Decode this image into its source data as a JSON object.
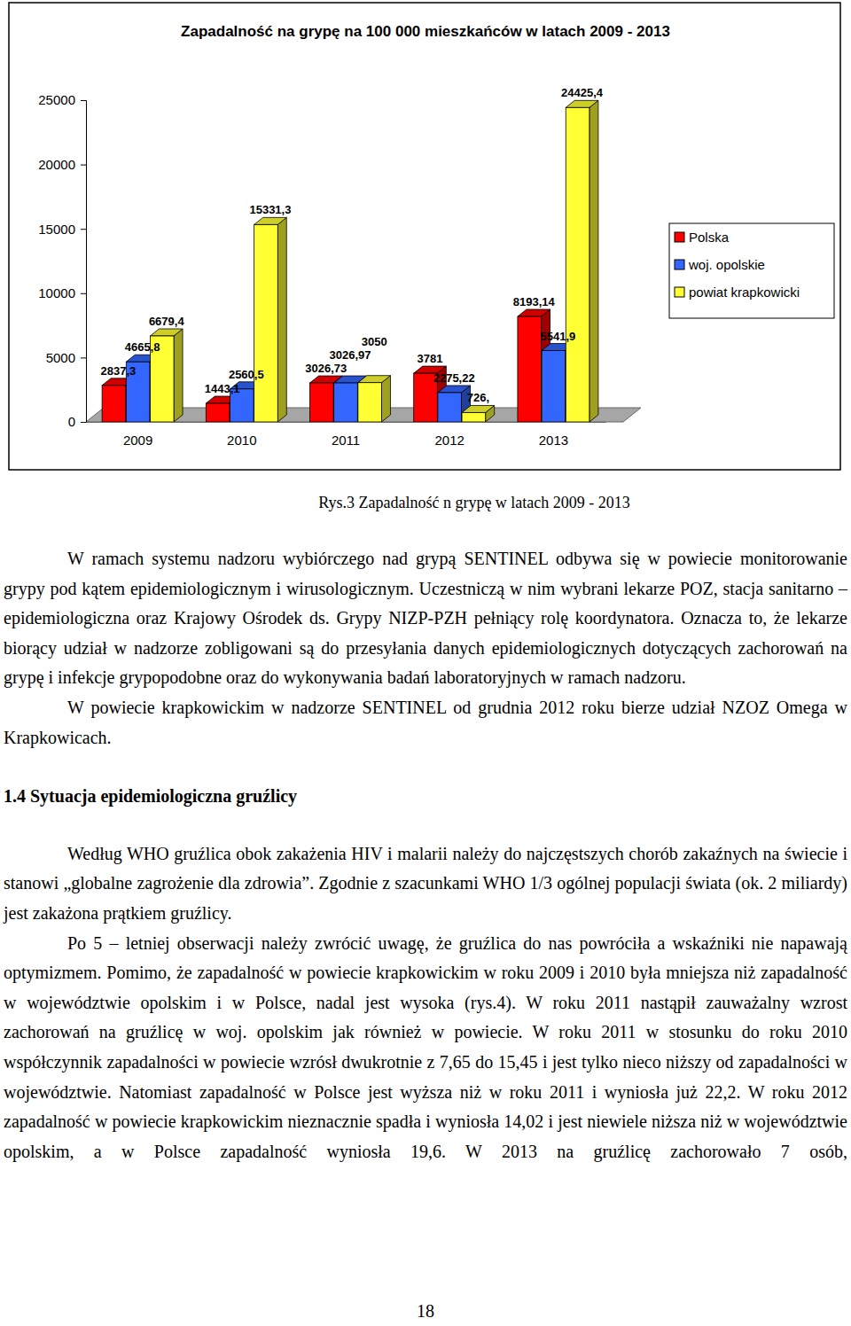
{
  "chart_data": {
    "type": "bar",
    "title": "Zapadalność na grypę na 100 000 mieszkańców w latach 2009 - 2013",
    "categories": [
      "2009",
      "2010",
      "2011",
      "2012",
      "2013"
    ],
    "series": [
      {
        "name": "Polska",
        "color": "#ff0000",
        "values": [
          2837.3,
          1443.1,
          3026.73,
          3781,
          8193.14
        ],
        "value_labels": [
          "2837,3",
          "1443,1",
          "3026,73",
          "3781",
          "8193,14"
        ]
      },
      {
        "name": "woj. opolskie",
        "color": "#3366ff",
        "values": [
          4665.8,
          2560.5,
          3026.97,
          2275.22,
          5541.9
        ],
        "value_labels": [
          "4665,8",
          "2560,5",
          "3026,97",
          "2275,22",
          "5541,9"
        ]
      },
      {
        "name": "powiat krapkowicki",
        "color": "#ffff33",
        "values": [
          6679.4,
          15331.3,
          3050,
          726,
          24425.4
        ],
        "value_labels": [
          "6679,4",
          "15331,3",
          "3050",
          "726,",
          "24425,4"
        ]
      }
    ],
    "ylim": [
      0,
      25000
    ],
    "yticks": [
      0,
      5000,
      10000,
      15000,
      20000,
      25000
    ],
    "grid": false,
    "legend": "right",
    "data_labels": true
  },
  "document": {
    "caption": "Rys.3 Zapadalność n grypę w latach 2009 - 2013",
    "blocks": [
      {
        "type": "paragraph",
        "text": "W ramach systemu nadzoru wybiórczego nad grypą SENTINEL odbywa się w powiecie monitorowanie grypy pod kątem epidemiologicznym i wirusologicznym. Uczestniczą w nim wybrani lekarze POZ, stacja sanitarno – epidemiologiczna oraz Krajowy Ośrodek ds. Grypy NIZP-PZH pełniący rolę koordynatora. Oznacza to, że lekarze biorący udział w nadzorze zobligowani są do przesyłania danych epidemiologicznych dotyczących zachorowań na grypę i infekcje grypopodobne oraz do wykonywania badań laboratoryjnych w ramach nadzoru."
      },
      {
        "type": "paragraph",
        "text": "W powiecie krapkowickim w nadzorze SENTINEL od grudnia 2012 roku bierze udział NZOZ Omega w Krapkowicach."
      },
      {
        "type": "heading",
        "text": "1.4 Sytuacja epidemiologiczna gruźlicy"
      },
      {
        "type": "paragraph",
        "text": "Według WHO gruźlica obok zakażenia HIV i malarii należy do najczęstszych chorób zakaźnych na świecie i stanowi „globalne zagrożenie dla zdrowia”. Zgodnie z szacunkami WHO 1/3 ogólnej populacji świata (ok. 2 miliardy) jest zakażona prątkiem gruźlicy."
      },
      {
        "type": "paragraph",
        "text": "Po 5 – letniej obserwacji należy zwrócić uwagę, że gruźlica do nas powróciła a wskaźniki nie napawają optymizmem. Pomimo, że zapadalność w powiecie krapkowickim w roku 2009 i 2010 była mniejsza niż zapadalność w województwie opolskim i w Polsce, nadal jest wysoka (rys.4). W roku 2011 nastąpił zauważalny wzrost zachorowań na gruźlicę w woj. opolskim jak również w powiecie. W roku 2011 w stosunku do roku 2010 współczynnik zapadalności w powiecie wzrósł dwukrotnie z 7,65 do 15,45 i jest tylko nieco niższy od zapadalności w województwie. Natomiast zapadalność w Polsce jest wyższa niż w roku 2011 i wyniosła już 22,2. W roku 2012 zapadalność w powiecie krapkowickim nieznacznie spadła i wyniosła 14,02 i jest niewiele niższa niż w województwie opolskim, a w Polsce zapadalność wyniosła 19,6. W 2013 na gruźlicę zachorowało 7 osób,"
      }
    ],
    "page_number": "18"
  }
}
